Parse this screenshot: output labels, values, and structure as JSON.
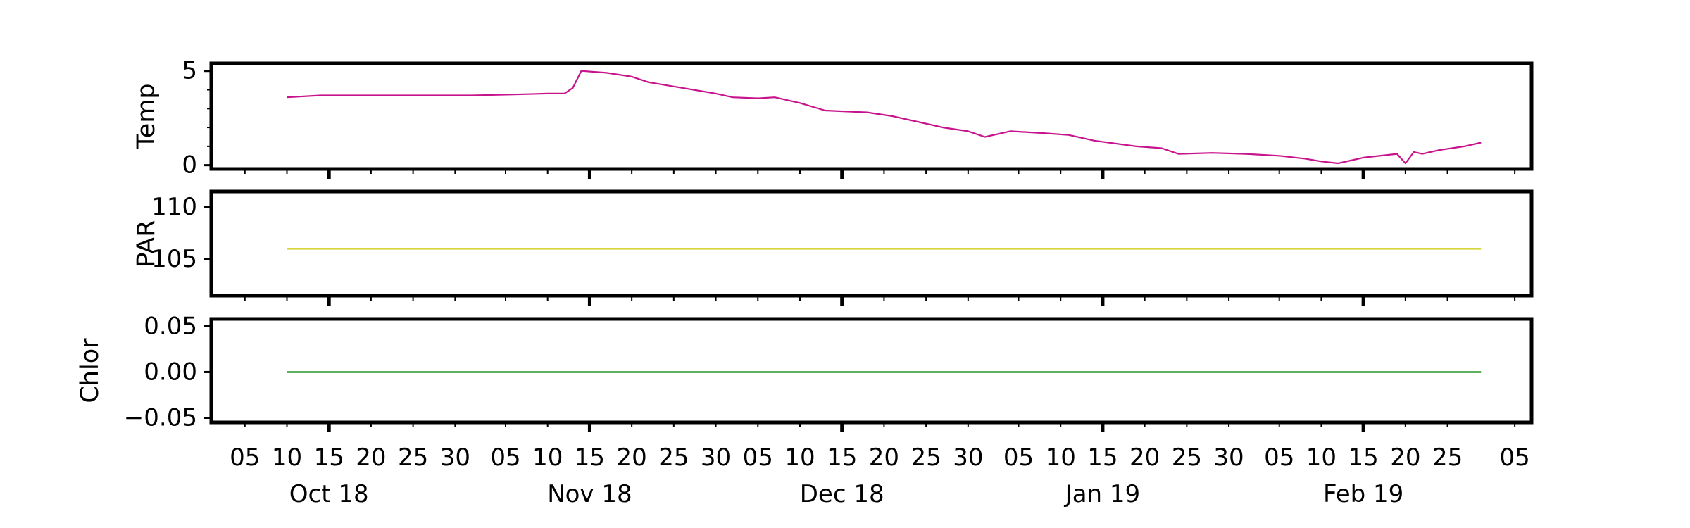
{
  "chart_data": [
    {
      "type": "line",
      "ylabel": "Temp",
      "ylim": [
        -0.2,
        5.4
      ],
      "yticks": [
        0,
        5
      ],
      "ytick_labels": [
        "0",
        "5"
      ],
      "series": [
        {
          "color": "#c8148c",
          "x": [
            "2018-10-10",
            "2018-10-14",
            "2018-10-20",
            "2018-10-26",
            "2018-11-01",
            "2018-11-06",
            "2018-11-10",
            "2018-11-12",
            "2018-11-13",
            "2018-11-14",
            "2018-11-17",
            "2018-11-20",
            "2018-11-22",
            "2018-11-26",
            "2018-11-30",
            "2018-12-02",
            "2018-12-05",
            "2018-12-07",
            "2018-12-10",
            "2018-12-13",
            "2018-12-18",
            "2018-12-21",
            "2018-12-24",
            "2018-12-27",
            "2018-12-30",
            "2019-01-01",
            "2019-01-04",
            "2019-01-08",
            "2019-01-11",
            "2019-01-14",
            "2019-01-19",
            "2019-01-22",
            "2019-01-24",
            "2019-01-28",
            "2019-02-01",
            "2019-02-05",
            "2019-02-08",
            "2019-02-10",
            "2019-02-12",
            "2019-02-15",
            "2019-02-19",
            "2019-02-20",
            "2019-02-21",
            "2019-02-22",
            "2019-02-24",
            "2019-02-27",
            "2019-03-01"
          ],
          "y": [
            3.6,
            3.7,
            3.7,
            3.7,
            3.7,
            3.75,
            3.8,
            3.8,
            4.1,
            5.0,
            4.9,
            4.7,
            4.4,
            4.1,
            3.8,
            3.6,
            3.55,
            3.6,
            3.3,
            2.9,
            2.8,
            2.6,
            2.3,
            2.0,
            1.8,
            1.5,
            1.8,
            1.7,
            1.6,
            1.3,
            1.0,
            0.9,
            0.6,
            0.65,
            0.6,
            0.5,
            0.35,
            0.2,
            0.1,
            0.4,
            0.6,
            0.1,
            0.7,
            0.6,
            0.8,
            1.0,
            1.2
          ]
        }
      ]
    },
    {
      "type": "line",
      "ylabel": "PAR",
      "ylim": [
        101.5,
        111.5
      ],
      "yticks": [
        105,
        110
      ],
      "ytick_labels": [
        "105",
        "110"
      ],
      "series": [
        {
          "color": "#c8c800",
          "x": [
            "2018-10-10",
            "2019-03-01"
          ],
          "y": [
            106.0,
            106.0
          ]
        }
      ]
    },
    {
      "type": "line",
      "ylabel": "Chlor",
      "ylim": [
        -0.055,
        0.058
      ],
      "yticks": [
        -0.05,
        0.0,
        0.05
      ],
      "ytick_labels": [
        "−0.05",
        "0.00",
        "0.05"
      ],
      "series": [
        {
          "color": "#008000",
          "x": [
            "2018-10-10",
            "2019-03-01"
          ],
          "y": [
            0.0,
            0.0
          ]
        }
      ]
    }
  ],
  "xaxis": {
    "xlim": [
      "2018-10-01",
      "2019-03-07"
    ],
    "minor_ticks": [
      {
        "date": "2018-10-05",
        "label": "05"
      },
      {
        "date": "2018-10-10",
        "label": "10"
      },
      {
        "date": "2018-10-15",
        "label": "15"
      },
      {
        "date": "2018-10-20",
        "label": "20"
      },
      {
        "date": "2018-10-25",
        "label": "25"
      },
      {
        "date": "2018-10-30",
        "label": "30"
      },
      {
        "date": "2018-11-05",
        "label": "05"
      },
      {
        "date": "2018-11-10",
        "label": "10"
      },
      {
        "date": "2018-11-15",
        "label": "15"
      },
      {
        "date": "2018-11-20",
        "label": "20"
      },
      {
        "date": "2018-11-25",
        "label": "25"
      },
      {
        "date": "2018-11-30",
        "label": "30"
      },
      {
        "date": "2018-12-05",
        "label": "05"
      },
      {
        "date": "2018-12-10",
        "label": "10"
      },
      {
        "date": "2018-12-15",
        "label": "15"
      },
      {
        "date": "2018-12-20",
        "label": "20"
      },
      {
        "date": "2018-12-25",
        "label": "25"
      },
      {
        "date": "2018-12-30",
        "label": "30"
      },
      {
        "date": "2019-01-05",
        "label": "05"
      },
      {
        "date": "2019-01-10",
        "label": "10"
      },
      {
        "date": "2019-01-15",
        "label": "15"
      },
      {
        "date": "2019-01-20",
        "label": "20"
      },
      {
        "date": "2019-01-25",
        "label": "25"
      },
      {
        "date": "2019-01-30",
        "label": "30"
      },
      {
        "date": "2019-02-05",
        "label": "05"
      },
      {
        "date": "2019-02-10",
        "label": "10"
      },
      {
        "date": "2019-02-15",
        "label": "15"
      },
      {
        "date": "2019-02-20",
        "label": "20"
      },
      {
        "date": "2019-02-25",
        "label": "25"
      },
      {
        "date": "2019-03-05",
        "label": "05"
      }
    ],
    "major_ticks": [
      {
        "date": "2018-10-15",
        "label": "Oct 18"
      },
      {
        "date": "2018-11-15",
        "label": "Nov 18"
      },
      {
        "date": "2018-12-15",
        "label": "Dec 18"
      },
      {
        "date": "2019-01-15",
        "label": "Jan 19"
      },
      {
        "date": "2019-02-15",
        "label": "Feb 19"
      }
    ]
  }
}
